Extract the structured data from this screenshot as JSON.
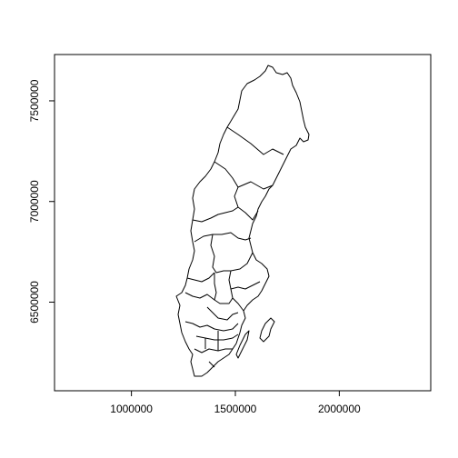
{
  "chart_data": {
    "type": "map",
    "title": "",
    "xlabel": "",
    "ylabel": "",
    "xlim": [
      630000,
      2440000
    ],
    "ylim": [
      6060000,
      7730000
    ],
    "x_ticks": [
      {
        "value": 1000000,
        "label": "1000000"
      },
      {
        "value": 1500000,
        "label": "1500000"
      },
      {
        "value": 2000000,
        "label": "2000000"
      }
    ],
    "y_ticks": [
      {
        "value": 6500000,
        "label": "6500000"
      },
      {
        "value": 7000000,
        "label": "7000000"
      },
      {
        "value": 7500000,
        "label": "7500000"
      }
    ],
    "grid": false,
    "legend": "none",
    "outline_color": "#000000"
  }
}
